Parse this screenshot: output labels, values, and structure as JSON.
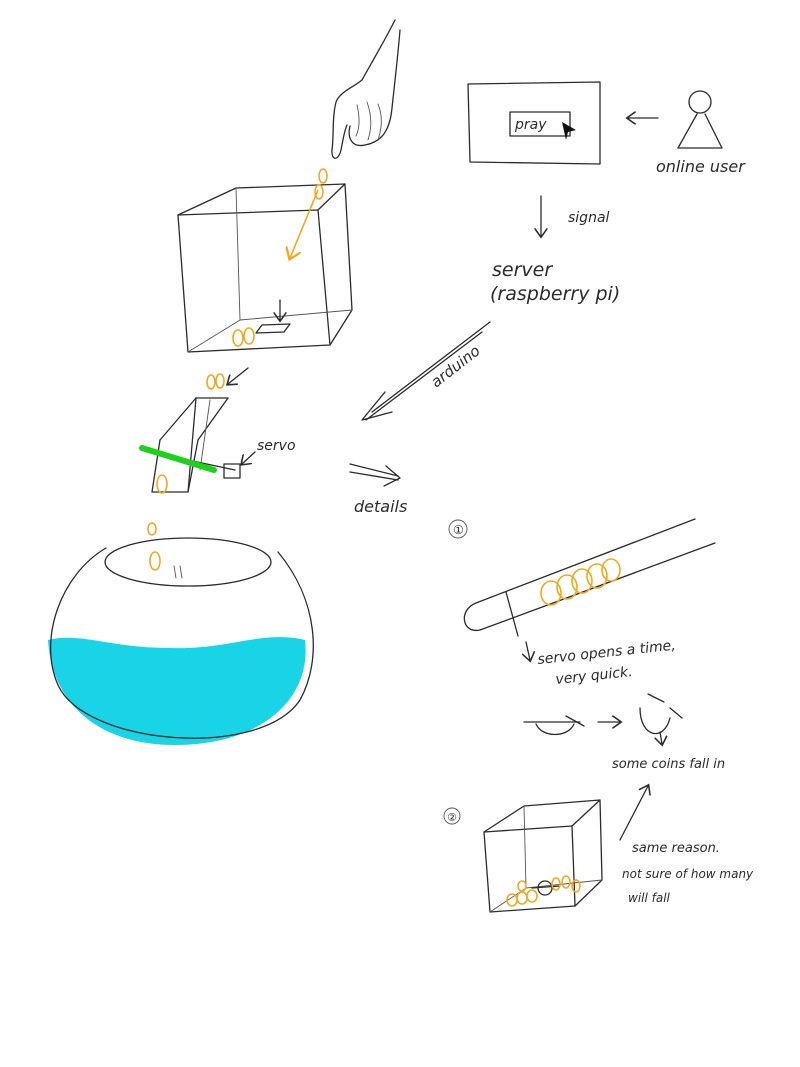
{
  "colors": {
    "ink": "#2b2b2b",
    "coin": "#f2a81d",
    "water": "#19d3e6",
    "rod": "#1fd11f"
  },
  "labels": {
    "pray_button": "pray",
    "user": "online user",
    "signal": "signal",
    "server_line1": "server",
    "server_line2": "(raspberry pi)",
    "arduino": "arduino",
    "servo": "servo",
    "details": "details",
    "step1_marker": "①",
    "step1_note_line1": "servo opens a time,",
    "step1_note_line2": "very quick.",
    "coins_fall": "some coins fall in",
    "step2_marker": "②",
    "step2_note_line1": "same reason.",
    "step2_note_line2": "not sure of how many",
    "step2_note_line3": "will fall"
  },
  "icons": [
    "hand-icon",
    "user-icon",
    "cursor-icon",
    "arrow-icon",
    "coin-icon"
  ]
}
